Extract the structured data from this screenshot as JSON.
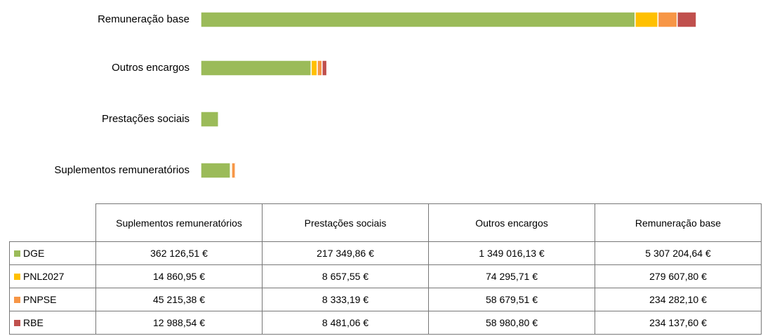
{
  "chart_data": {
    "type": "stacked-bar-horizontal",
    "categories": [
      "Suplementos remuneratórios",
      "Prestações sociais",
      "Outros encargos",
      "Remuneração base"
    ],
    "series": [
      {
        "name": "DGE",
        "color": "#9bbb59",
        "values": [
          362126.51,
          217349.86,
          1349016.13,
          5307204.64
        ],
        "value_labels": [
          "362 126,51 €",
          "217 349,86 €",
          "1 349 016,13 €",
          "5 307 204,64 €"
        ]
      },
      {
        "name": "PNL2027",
        "color": "#ffc000",
        "values": [
          14860.95,
          8657.55,
          74295.71,
          279607.8
        ],
        "value_labels": [
          "14 860,95 €",
          "8 657,55 €",
          "74 295,71 €",
          "279 607,80 €"
        ]
      },
      {
        "name": "PNPSE",
        "color": "#f79646",
        "values": [
          45215.38,
          8333.19,
          58679.51,
          234282.1
        ],
        "value_labels": [
          "45 215,38 €",
          "8 333,19 €",
          "58 679,51 €",
          "234 282,10 €"
        ]
      },
      {
        "name": "RBE",
        "color": "#c0504d",
        "values": [
          12988.54,
          8481.06,
          58980.8,
          234137.6
        ],
        "value_labels": [
          "12 988,54 €",
          "8 481,06 €",
          "58 980,80 €",
          "234 137,60 €"
        ]
      }
    ]
  }
}
